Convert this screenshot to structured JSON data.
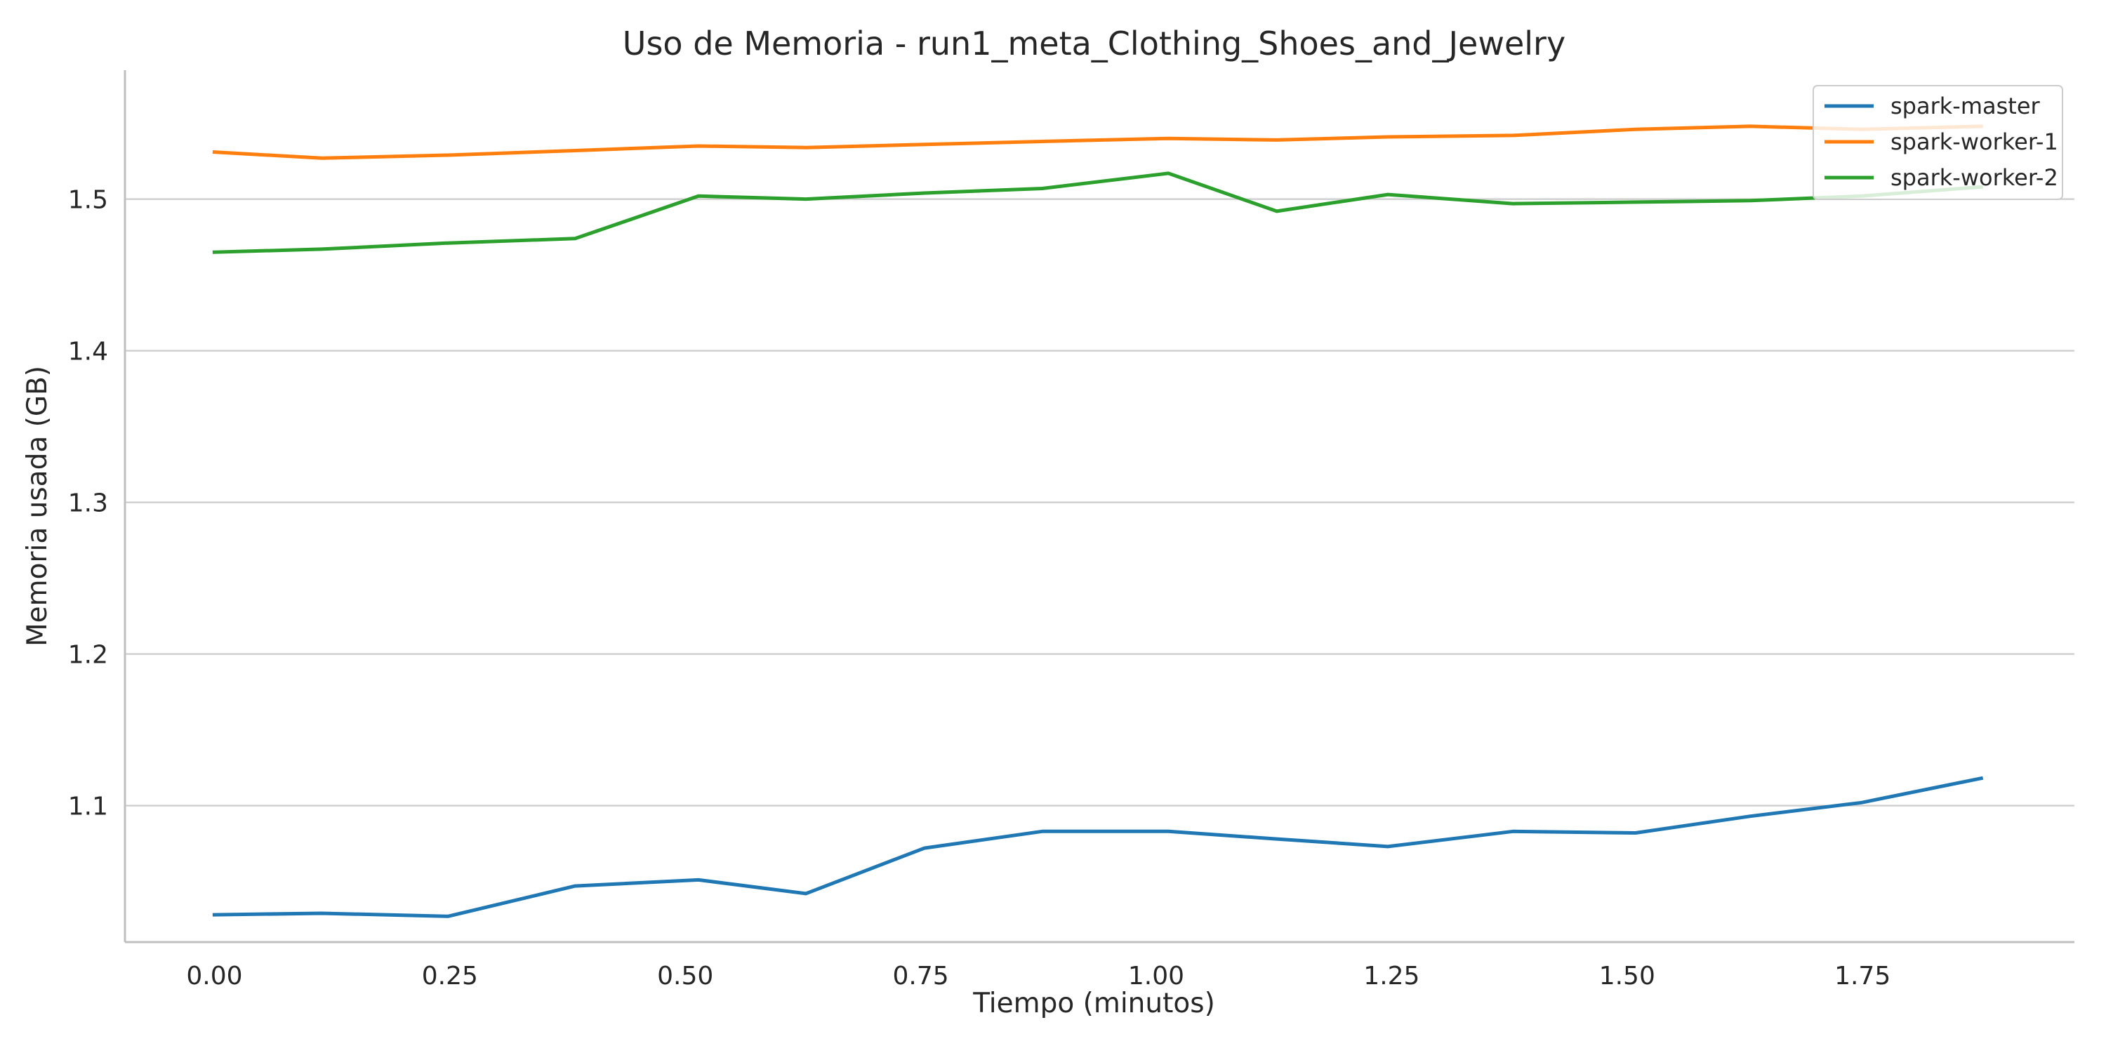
{
  "chart_data": {
    "type": "line",
    "title": "Uso de Memoria - run1_meta_Clothing_Shoes_and_Jewelry",
    "xlabel": "Tiempo (minutos)",
    "ylabel": "Memoria usada (GB)",
    "xlim": [
      -0.095,
      1.975
    ],
    "ylim": [
      1.01,
      1.585
    ],
    "xticks": [
      0.0,
      0.25,
      0.5,
      0.75,
      1.0,
      1.25,
      1.5,
      1.75
    ],
    "xtick_labels": [
      "0.00",
      "0.25",
      "0.50",
      "0.75",
      "1.00",
      "1.25",
      "1.50",
      "1.75"
    ],
    "yticks": [
      1.1,
      1.2,
      1.3,
      1.4,
      1.5
    ],
    "ytick_labels": [
      "1.1",
      "1.2",
      "1.3",
      "1.4",
      "1.5"
    ],
    "grid": "y",
    "legend_position": "upper right",
    "x": [
      0.0,
      0.114,
      0.248,
      0.383,
      0.514,
      0.628,
      0.754,
      0.879,
      1.013,
      1.128,
      1.246,
      1.379,
      1.509,
      1.631,
      1.749,
      1.876
    ],
    "series": [
      {
        "name": "spark-master",
        "color": "#1f77b4",
        "values": [
          1.028,
          1.029,
          1.027,
          1.047,
          1.051,
          1.042,
          1.072,
          1.083,
          1.083,
          1.078,
          1.073,
          1.083,
          1.082,
          1.093,
          1.102,
          1.118
        ]
      },
      {
        "name": "spark-worker-1",
        "color": "#ff7f0e",
        "values": [
          1.531,
          1.527,
          1.529,
          1.532,
          1.535,
          1.534,
          1.536,
          1.538,
          1.54,
          1.539,
          1.541,
          1.542,
          1.546,
          1.548,
          1.546,
          1.548
        ]
      },
      {
        "name": "spark-worker-2",
        "color": "#2ca02c",
        "values": [
          1.465,
          1.467,
          1.471,
          1.474,
          1.502,
          1.5,
          1.504,
          1.507,
          1.517,
          1.492,
          1.503,
          1.497,
          1.498,
          1.499,
          1.502,
          1.508
        ]
      }
    ]
  }
}
